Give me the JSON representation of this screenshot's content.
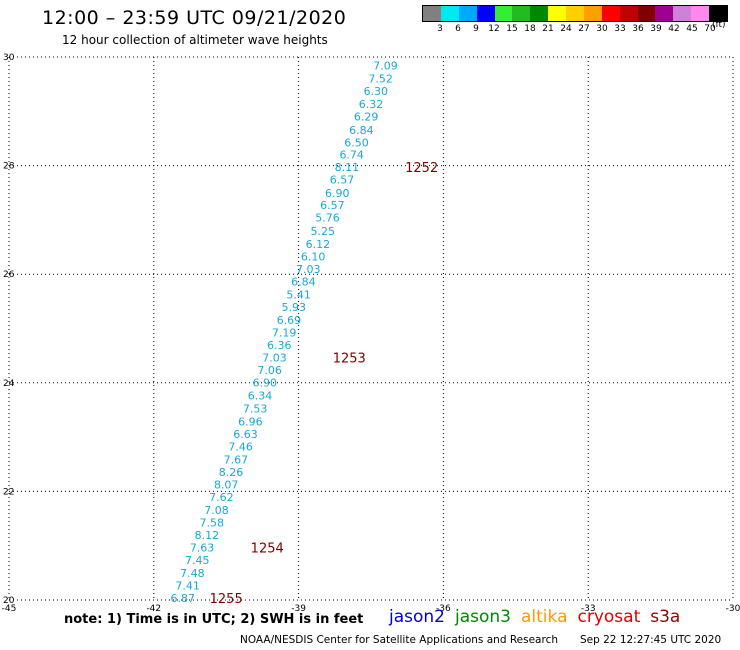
{
  "header": {
    "title": "12:00 – 23:59 UTC 09/21/2020",
    "subtitle": "12 hour collection of altimeter wave heights"
  },
  "scale": {
    "colors": [
      "#808080",
      "#00e8f0",
      "#00a8ff",
      "#0000ff",
      "#33ee33",
      "#22bb22",
      "#008800",
      "#ffff00",
      "#ffd000",
      "#ffa000",
      "#ff0000",
      "#c00000",
      "#800000",
      "#a00090",
      "#d080d8",
      "#ff88ee",
      "#000000"
    ],
    "labels": [
      "3",
      "6",
      "9",
      "12",
      "15",
      "18",
      "21",
      "24",
      "27",
      "30",
      "33",
      "36",
      "39",
      "42",
      "45",
      "70"
    ],
    "unit": "(ft)"
  },
  "map": {
    "lon_range": [
      -45,
      -30
    ],
    "lat_range": [
      20,
      30
    ],
    "x_ticks": [
      "-45",
      "-42",
      "-39",
      "-36",
      "-33",
      "-30"
    ],
    "y_ticks": [
      "20",
      "22",
      "24",
      "26",
      "28",
      "30"
    ],
    "grid": true,
    "obs_color": "#18a8d8",
    "time_color": "#800000",
    "observations": [
      {
        "lon": -37.2,
        "lat": 29.84,
        "swh": "7.09"
      },
      {
        "lon": -37.3,
        "lat": 29.6,
        "swh": "7.52"
      },
      {
        "lon": -37.4,
        "lat": 29.37,
        "swh": "6.30"
      },
      {
        "lon": -37.5,
        "lat": 29.13,
        "swh": "6.32"
      },
      {
        "lon": -37.6,
        "lat": 28.9,
        "swh": "6.29"
      },
      {
        "lon": -37.7,
        "lat": 28.66,
        "swh": "6.84"
      },
      {
        "lon": -37.8,
        "lat": 28.43,
        "swh": "6.50"
      },
      {
        "lon": -37.9,
        "lat": 28.2,
        "swh": "6.74"
      },
      {
        "lon": -38.0,
        "lat": 27.97,
        "swh": "8.11"
      },
      {
        "lon": -38.1,
        "lat": 27.74,
        "swh": "6.57"
      },
      {
        "lon": -38.2,
        "lat": 27.5,
        "swh": "6.90"
      },
      {
        "lon": -38.3,
        "lat": 27.27,
        "swh": "6.57"
      },
      {
        "lon": -38.4,
        "lat": 27.04,
        "swh": "5.76"
      },
      {
        "lon": -38.5,
        "lat": 26.8,
        "swh": "5.25"
      },
      {
        "lon": -38.6,
        "lat": 26.56,
        "swh": "6.12"
      },
      {
        "lon": -38.7,
        "lat": 26.33,
        "swh": "6.10"
      },
      {
        "lon": -38.8,
        "lat": 26.1,
        "swh": "7.03"
      },
      {
        "lon": -38.9,
        "lat": 25.87,
        "swh": "6.84"
      },
      {
        "lon": -39.0,
        "lat": 25.63,
        "swh": "5.41"
      },
      {
        "lon": -39.1,
        "lat": 25.4,
        "swh": "5.93"
      },
      {
        "lon": -39.2,
        "lat": 25.16,
        "swh": "6.69"
      },
      {
        "lon": -39.3,
        "lat": 24.93,
        "swh": "7.19"
      },
      {
        "lon": -39.4,
        "lat": 24.7,
        "swh": "6.36"
      },
      {
        "lon": -39.5,
        "lat": 24.47,
        "swh": "7.03"
      },
      {
        "lon": -39.6,
        "lat": 24.24,
        "swh": "7.06"
      },
      {
        "lon": -39.7,
        "lat": 24.01,
        "swh": "6.90"
      },
      {
        "lon": -39.8,
        "lat": 23.77,
        "swh": "6.34"
      },
      {
        "lon": -39.9,
        "lat": 23.53,
        "swh": "7.53"
      },
      {
        "lon": -40.0,
        "lat": 23.29,
        "swh": "6.96"
      },
      {
        "lon": -40.1,
        "lat": 23.06,
        "swh": "6.63"
      },
      {
        "lon": -40.2,
        "lat": 22.83,
        "swh": "7.46"
      },
      {
        "lon": -40.3,
        "lat": 22.59,
        "swh": "7.67"
      },
      {
        "lon": -40.4,
        "lat": 22.36,
        "swh": "8.26"
      },
      {
        "lon": -40.5,
        "lat": 22.13,
        "swh": "8.07"
      },
      {
        "lon": -40.6,
        "lat": 21.9,
        "swh": "7.62"
      },
      {
        "lon": -40.7,
        "lat": 21.66,
        "swh": "7.08"
      },
      {
        "lon": -40.8,
        "lat": 21.43,
        "swh": "7.58"
      },
      {
        "lon": -40.9,
        "lat": 21.2,
        "swh": "8.12"
      },
      {
        "lon": -41.0,
        "lat": 20.97,
        "swh": "7.63"
      },
      {
        "lon": -41.1,
        "lat": 20.74,
        "swh": "7.45"
      },
      {
        "lon": -41.2,
        "lat": 20.5,
        "swh": "7.48"
      },
      {
        "lon": -41.3,
        "lat": 20.27,
        "swh": "7.41"
      },
      {
        "lon": -41.4,
        "lat": 20.04,
        "swh": "6.87"
      }
    ],
    "time_labels": [
      {
        "lon": -36.45,
        "lat": 27.97,
        "text": "1252"
      },
      {
        "lon": -37.95,
        "lat": 24.47,
        "text": "1253"
      },
      {
        "lon": -39.65,
        "lat": 20.97,
        "text": "1254"
      },
      {
        "lon": -40.5,
        "lat": 20.04,
        "text": "1255"
      }
    ]
  },
  "footer": {
    "note": "note:  1) Time is in UTC;  2) SWH is in feet",
    "missions": [
      {
        "name": "jason2",
        "color": "#0000dd"
      },
      {
        "name": "jason3",
        "color": "#008800"
      },
      {
        "name": "altika",
        "color": "#ff9900"
      },
      {
        "name": "cryosat",
        "color": "#dd0000"
      },
      {
        "name": "s3a",
        "color": "#990000"
      }
    ],
    "credit": "NOAA/NESDIS Center for Satellite Applications and Research",
    "timestamp": "Sep 22 12:27:45 UTC 2020"
  }
}
